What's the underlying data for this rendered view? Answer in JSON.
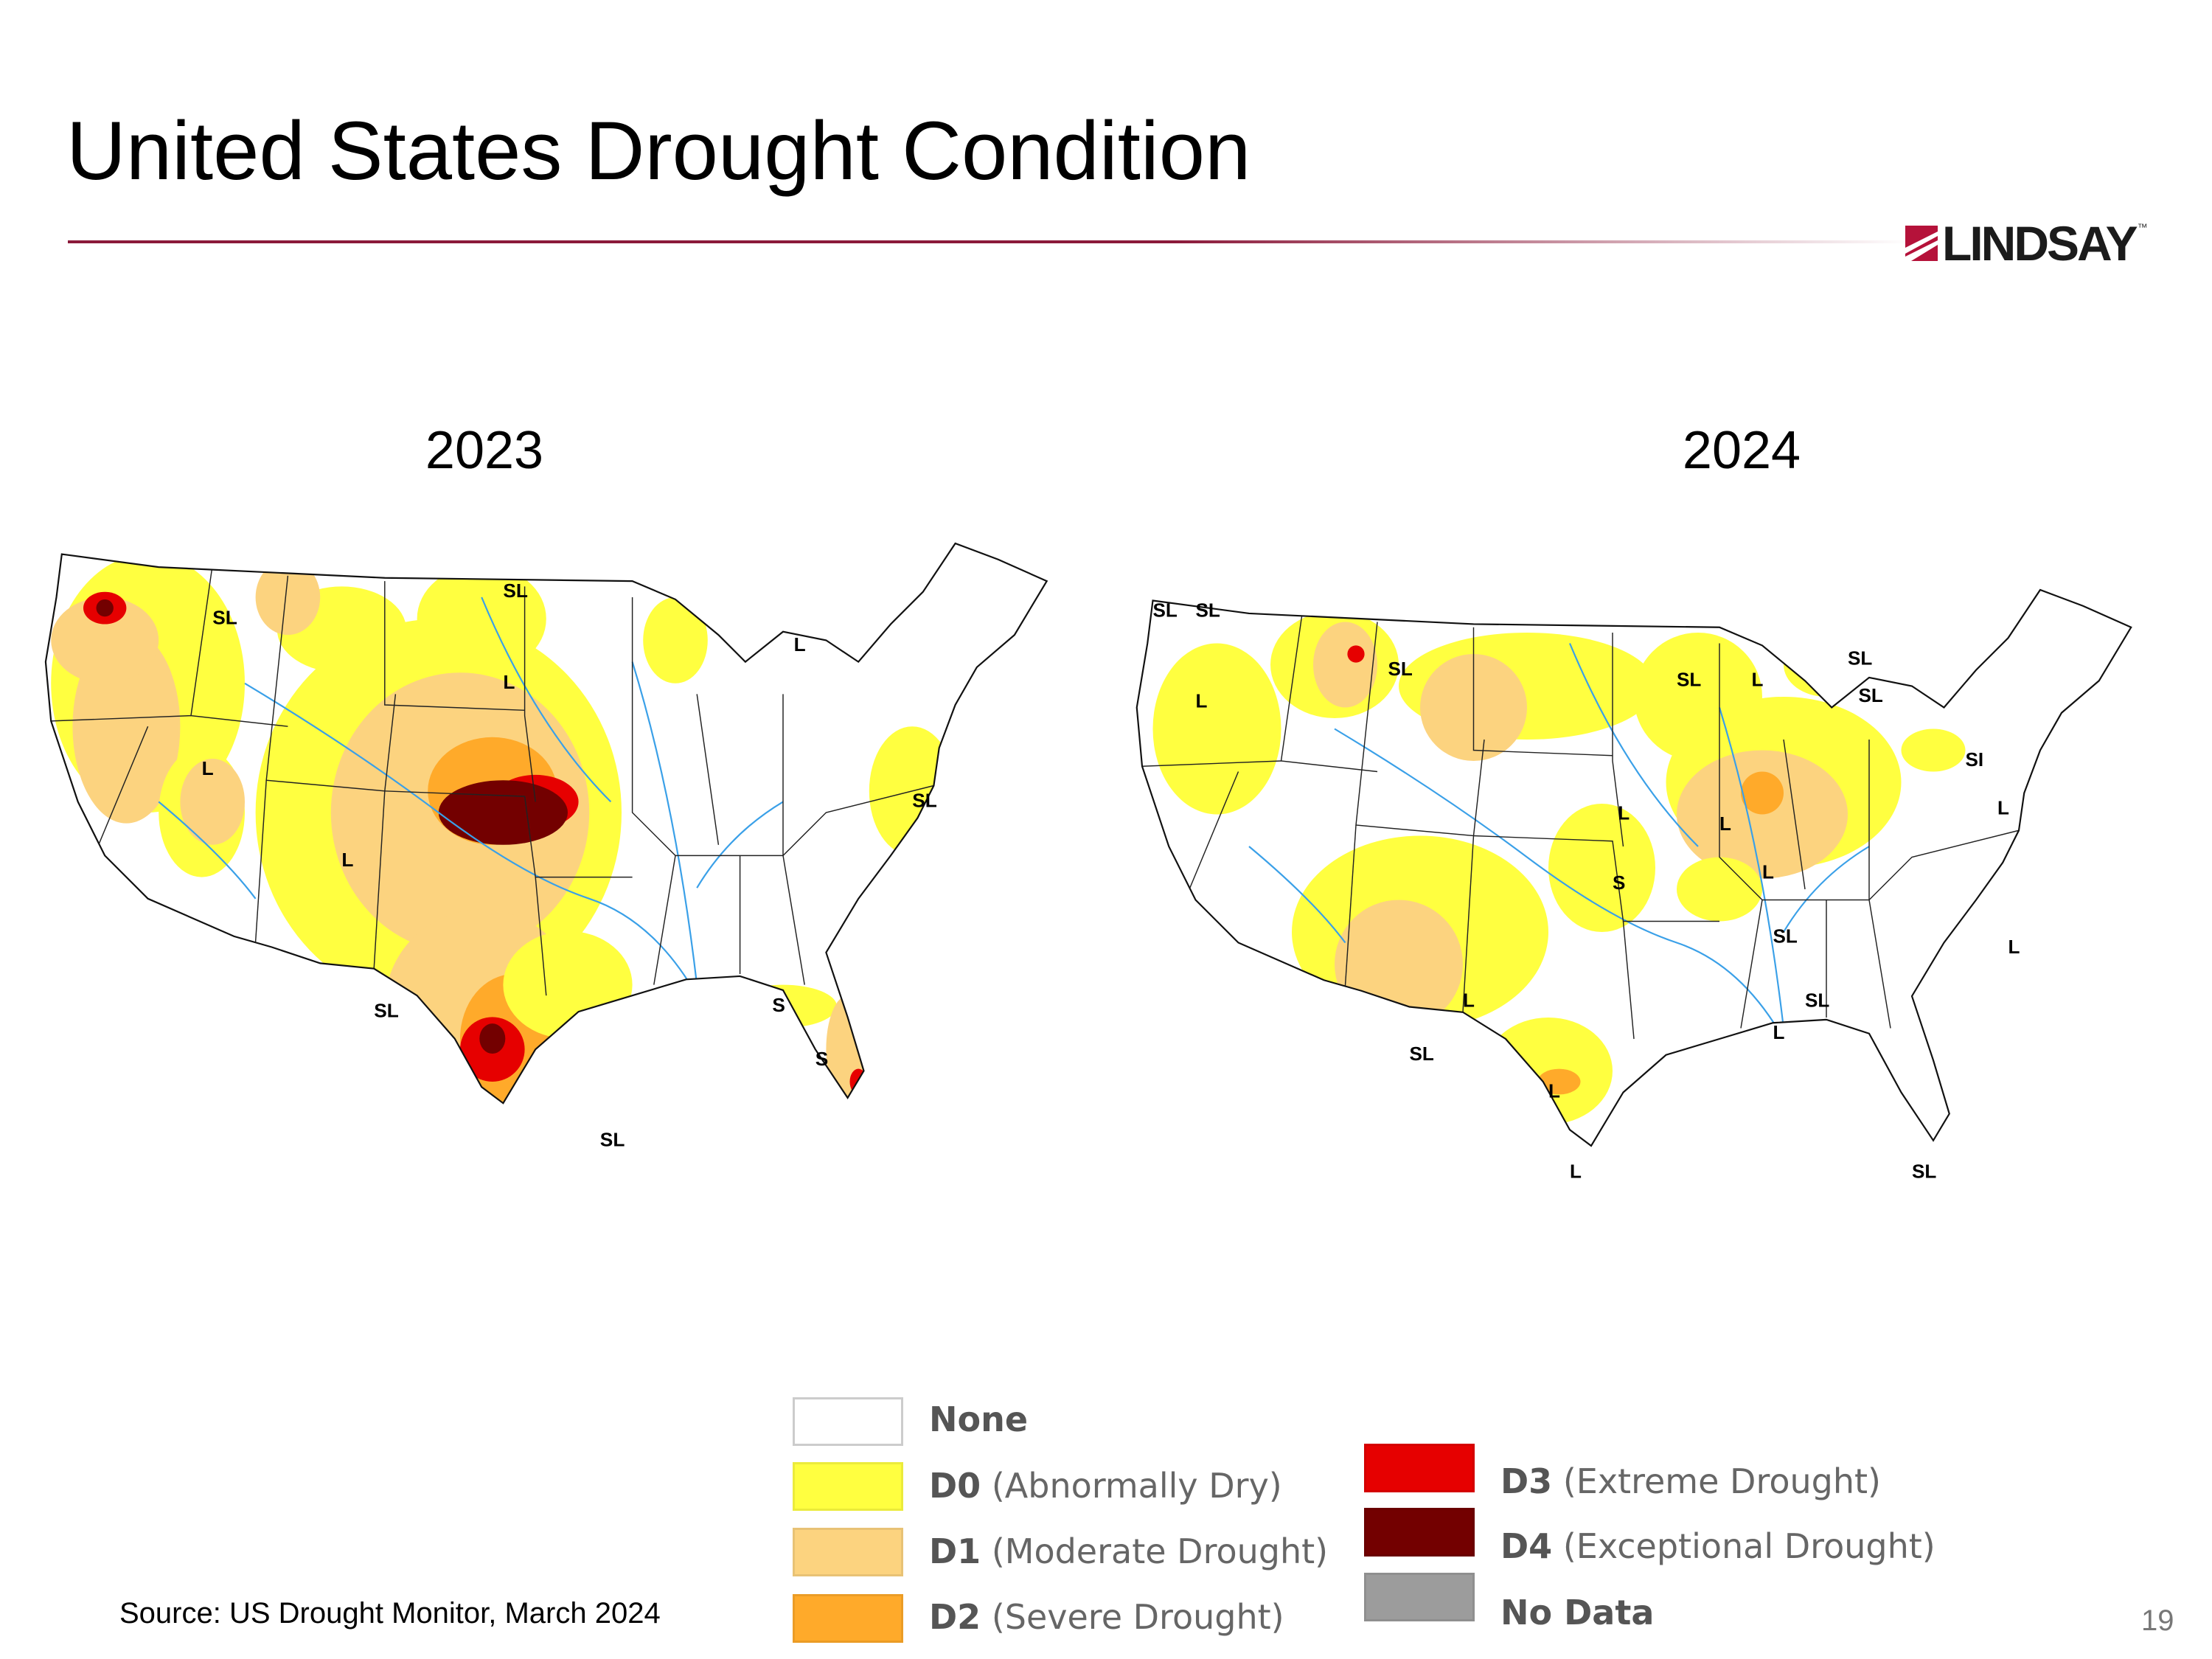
{
  "title": "United States Drought Condition",
  "logo": {
    "text": "LINDSAY",
    "tm": "™",
    "accent": "#b5123a"
  },
  "maps": [
    {
      "year": "2023",
      "labels": [
        "SL",
        "SL",
        "L",
        "L",
        "L",
        "L",
        "SL",
        "SL",
        "S",
        "S",
        "SL"
      ]
    },
    {
      "year": "2024",
      "labels": [
        "SL",
        "SL",
        "SL",
        "L",
        "SL",
        "SL",
        "L",
        "SL",
        "SI",
        "L",
        "L",
        "L",
        "L",
        "SL",
        "S",
        "L",
        "SL",
        "L",
        "L",
        "SL",
        "L",
        "L",
        "SL"
      ]
    }
  ],
  "legend": [
    {
      "code": "None",
      "desc": "",
      "color": "#ffffff"
    },
    {
      "code": "D0",
      "desc": "(Abnormally Dry)",
      "color": "#ffff40"
    },
    {
      "code": "D1",
      "desc": "(Moderate Drought)",
      "color": "#fcd37f"
    },
    {
      "code": "D2",
      "desc": "(Severe Drought)",
      "color": "#ffaa2a"
    },
    {
      "code": "D3",
      "desc": "(Extreme Drought)",
      "color": "#e60000"
    },
    {
      "code": "D4",
      "desc": "(Exceptional Drought)",
      "color": "#730000"
    },
    {
      "code": "No Data",
      "desc": "",
      "color": "#9c9c9c"
    }
  ],
  "source": "Source: US Drought Monitor, March 2024",
  "page_number": "19"
}
